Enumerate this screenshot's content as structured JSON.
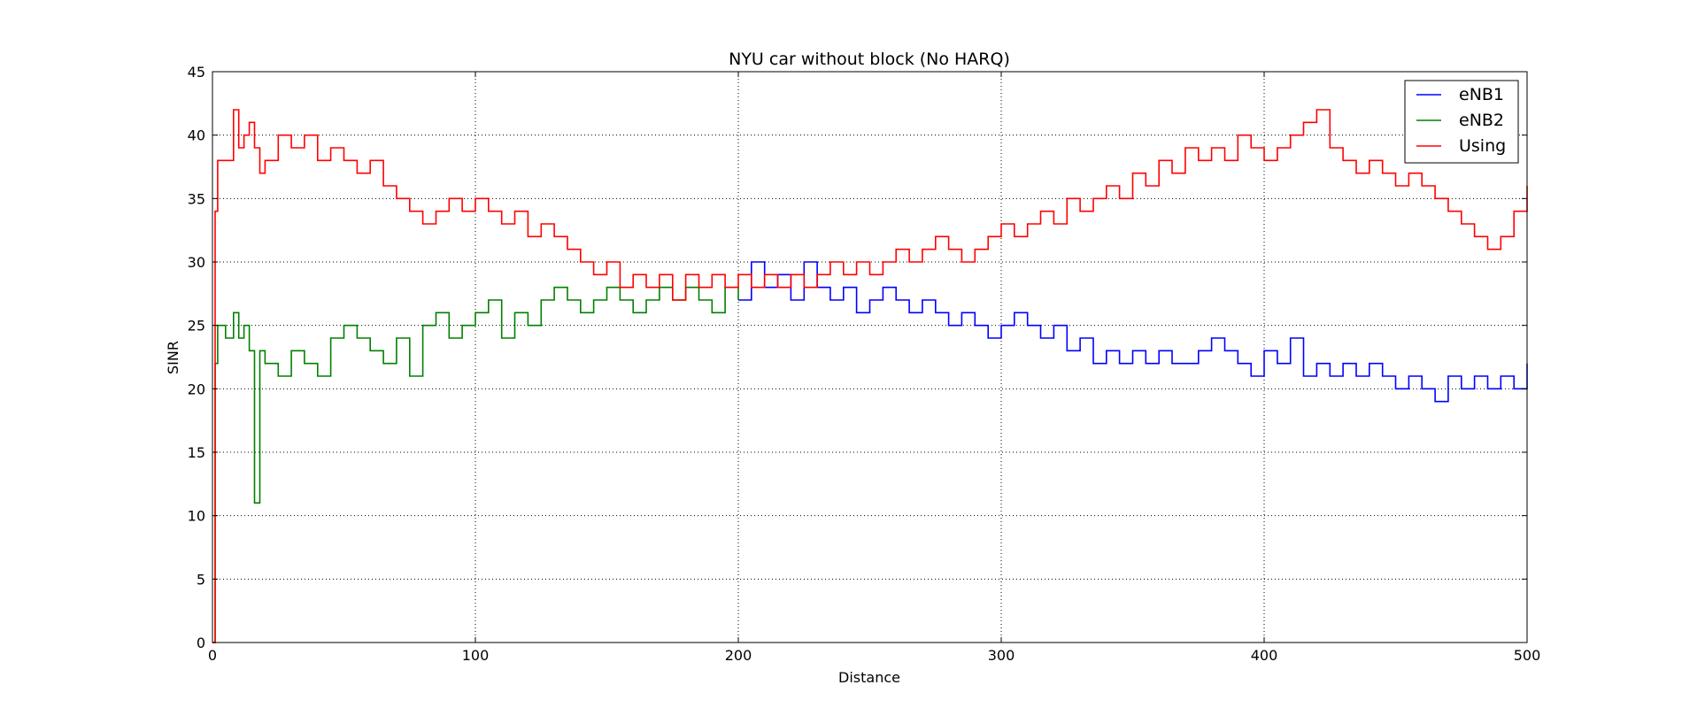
{
  "chart_data": {
    "type": "line",
    "title": "NYU car without block (No HARQ)",
    "xlabel": "Distance",
    "ylabel": "SINR",
    "xlim": [
      0,
      500
    ],
    "ylim": [
      0,
      45
    ],
    "xticks": [
      0,
      100,
      200,
      300,
      400,
      500
    ],
    "yticks": [
      0,
      5,
      10,
      15,
      20,
      25,
      30,
      35,
      40,
      45
    ],
    "grid": true,
    "legend_position": "top-right",
    "series": [
      {
        "name": "eNB1",
        "color": "#0000ff",
        "x": [
          200,
          205,
          210,
          215,
          220,
          225,
          230,
          235,
          240,
          245,
          250,
          255,
          260,
          265,
          270,
          275,
          280,
          285,
          290,
          295,
          300,
          305,
          310,
          315,
          320,
          325,
          330,
          335,
          340,
          345,
          350,
          355,
          360,
          365,
          370,
          375,
          380,
          385,
          390,
          395,
          400,
          405,
          410,
          415,
          420,
          425,
          430,
          435,
          440,
          445,
          450,
          455,
          460,
          465,
          470,
          475,
          480,
          485,
          490,
          495,
          500
        ],
        "values": [
          27,
          30,
          28,
          29,
          27,
          30,
          28,
          27,
          28,
          26,
          27,
          28,
          27,
          26,
          27,
          26,
          25,
          26,
          25,
          24,
          25,
          26,
          25,
          24,
          25,
          23,
          24,
          22,
          23,
          22,
          23,
          22,
          23,
          22,
          22,
          23,
          24,
          23,
          22,
          21,
          23,
          22,
          24,
          21,
          22,
          21,
          22,
          21,
          22,
          21,
          20,
          21,
          20,
          19,
          21,
          20,
          21,
          20,
          21,
          20,
          22
        ]
      },
      {
        "name": "eNB2",
        "color": "#008000",
        "x": [
          0,
          1,
          2,
          5,
          8,
          10,
          12,
          14,
          16,
          18,
          20,
          25,
          30,
          35,
          40,
          45,
          50,
          55,
          60,
          65,
          70,
          75,
          80,
          85,
          90,
          95,
          100,
          105,
          110,
          115,
          120,
          125,
          130,
          135,
          140,
          145,
          150,
          155,
          160,
          165,
          170,
          175,
          180,
          185,
          190,
          195,
          200
        ],
        "values": [
          0,
          22,
          25,
          24,
          26,
          24,
          25,
          23,
          11,
          23,
          22,
          21,
          23,
          22,
          21,
          24,
          25,
          24,
          23,
          22,
          24,
          21,
          25,
          26,
          24,
          25,
          26,
          27,
          24,
          26,
          25,
          27,
          28,
          27,
          26,
          27,
          28,
          27,
          26,
          27,
          28,
          27,
          28,
          27,
          26,
          28,
          27
        ]
      },
      {
        "name": "Using",
        "color": "#ff0000",
        "x": [
          0,
          1,
          2,
          5,
          8,
          10,
          12,
          14,
          16,
          18,
          20,
          25,
          30,
          35,
          40,
          45,
          50,
          55,
          60,
          65,
          70,
          75,
          80,
          85,
          90,
          95,
          100,
          105,
          110,
          115,
          120,
          125,
          130,
          135,
          140,
          145,
          150,
          155,
          160,
          165,
          170,
          175,
          180,
          185,
          190,
          195,
          200,
          205,
          210,
          215,
          220,
          225,
          230,
          235,
          240,
          245,
          250,
          255,
          260,
          265,
          270,
          275,
          280,
          285,
          290,
          295,
          300,
          305,
          310,
          315,
          320,
          325,
          330,
          335,
          340,
          345,
          350,
          355,
          360,
          365,
          370,
          375,
          380,
          385,
          390,
          395,
          400,
          405,
          410,
          415,
          420,
          425,
          430,
          435,
          440,
          445,
          450,
          455,
          460,
          465,
          470,
          475,
          480,
          485,
          490,
          495,
          500
        ],
        "values": [
          0,
          34,
          38,
          38,
          42,
          39,
          40,
          41,
          39,
          37,
          38,
          40,
          39,
          40,
          38,
          39,
          38,
          37,
          38,
          36,
          35,
          34,
          33,
          34,
          35,
          34,
          35,
          34,
          33,
          34,
          32,
          33,
          32,
          31,
          30,
          29,
          30,
          28,
          29,
          28,
          29,
          27,
          29,
          28,
          29,
          28,
          29,
          28,
          29,
          28,
          29,
          28,
          29,
          30,
          29,
          30,
          29,
          30,
          31,
          30,
          31,
          32,
          31,
          30,
          31,
          32,
          33,
          32,
          33,
          34,
          33,
          35,
          34,
          35,
          36,
          35,
          37,
          36,
          38,
          37,
          39,
          38,
          39,
          38,
          40,
          39,
          38,
          39,
          40,
          41,
          42,
          39,
          38,
          37,
          38,
          37,
          36,
          37,
          36,
          35,
          34,
          33,
          32,
          31,
          32,
          34,
          36
        ]
      }
    ]
  }
}
